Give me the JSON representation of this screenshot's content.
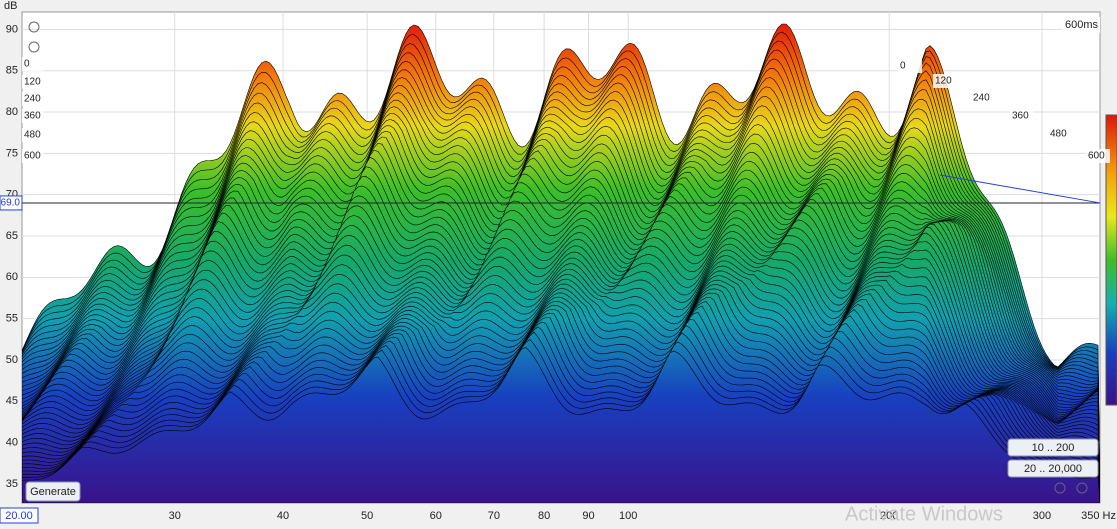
{
  "axis": {
    "y_label": "dB",
    "ylim": [
      32.7,
      92.1
    ],
    "yticks": [
      35,
      40,
      45,
      50,
      55,
      60,
      65,
      70,
      75,
      80,
      85,
      90
    ],
    "xlim": [
      20,
      350
    ],
    "xticks": [
      30,
      40,
      50,
      60,
      70,
      80,
      90,
      100,
      200,
      300
    ],
    "x_end_label": "350 Hz"
  },
  "time_labels_left": [
    "0",
    "120",
    "240",
    "360",
    "480",
    "600"
  ],
  "time_labels_right": [
    "0",
    "120",
    "240",
    "360",
    "480",
    "600"
  ],
  "time_end": "600ms",
  "cursor": {
    "level": {
      "value": 69,
      "label": "69.0"
    },
    "freq_label": "20.00"
  },
  "buttons": {
    "generate": "Generate",
    "range_low": "10 .. 200",
    "range_full": "20 .. 20,000"
  },
  "watermark": "Activate Windows"
}
